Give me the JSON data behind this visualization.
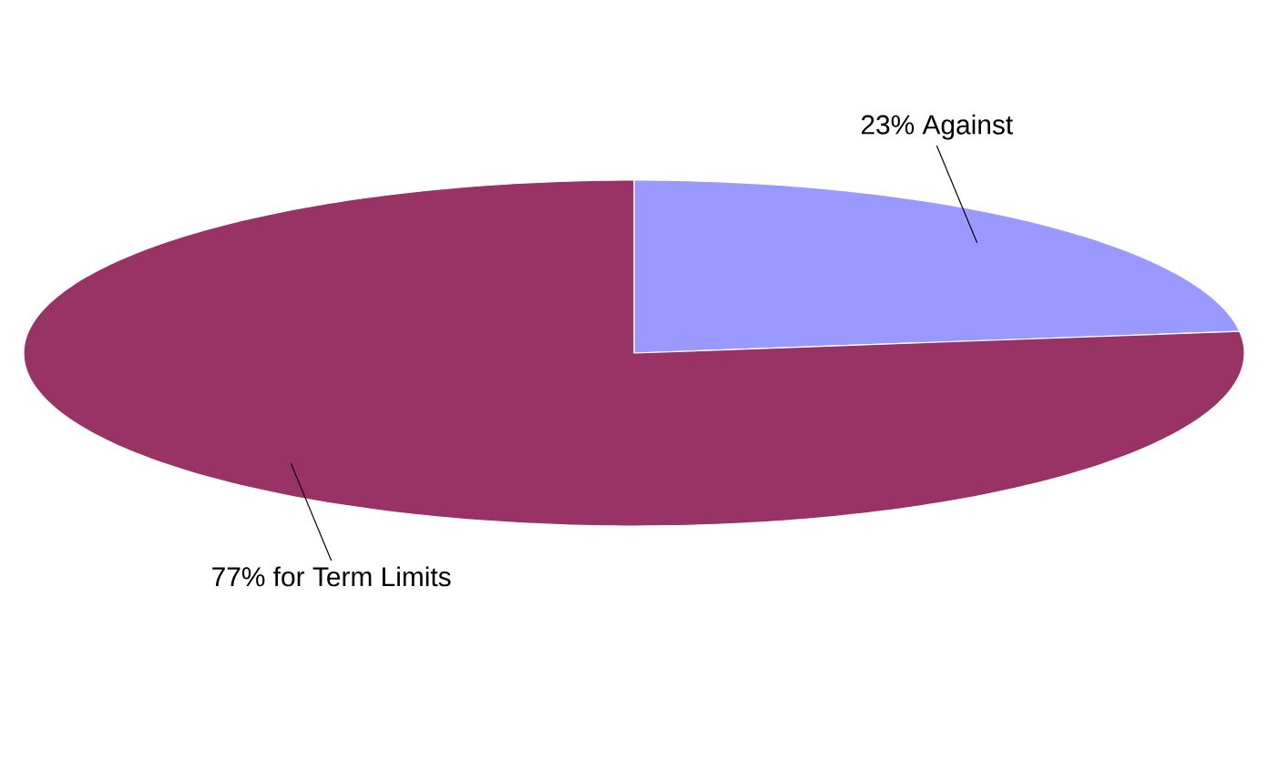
{
  "chart_data": {
    "type": "pie",
    "categories": [
      "23% Against",
      "77% for Term Limits"
    ],
    "values": [
      23,
      77
    ],
    "colors": [
      "#9999ff",
      "#993366"
    ]
  }
}
